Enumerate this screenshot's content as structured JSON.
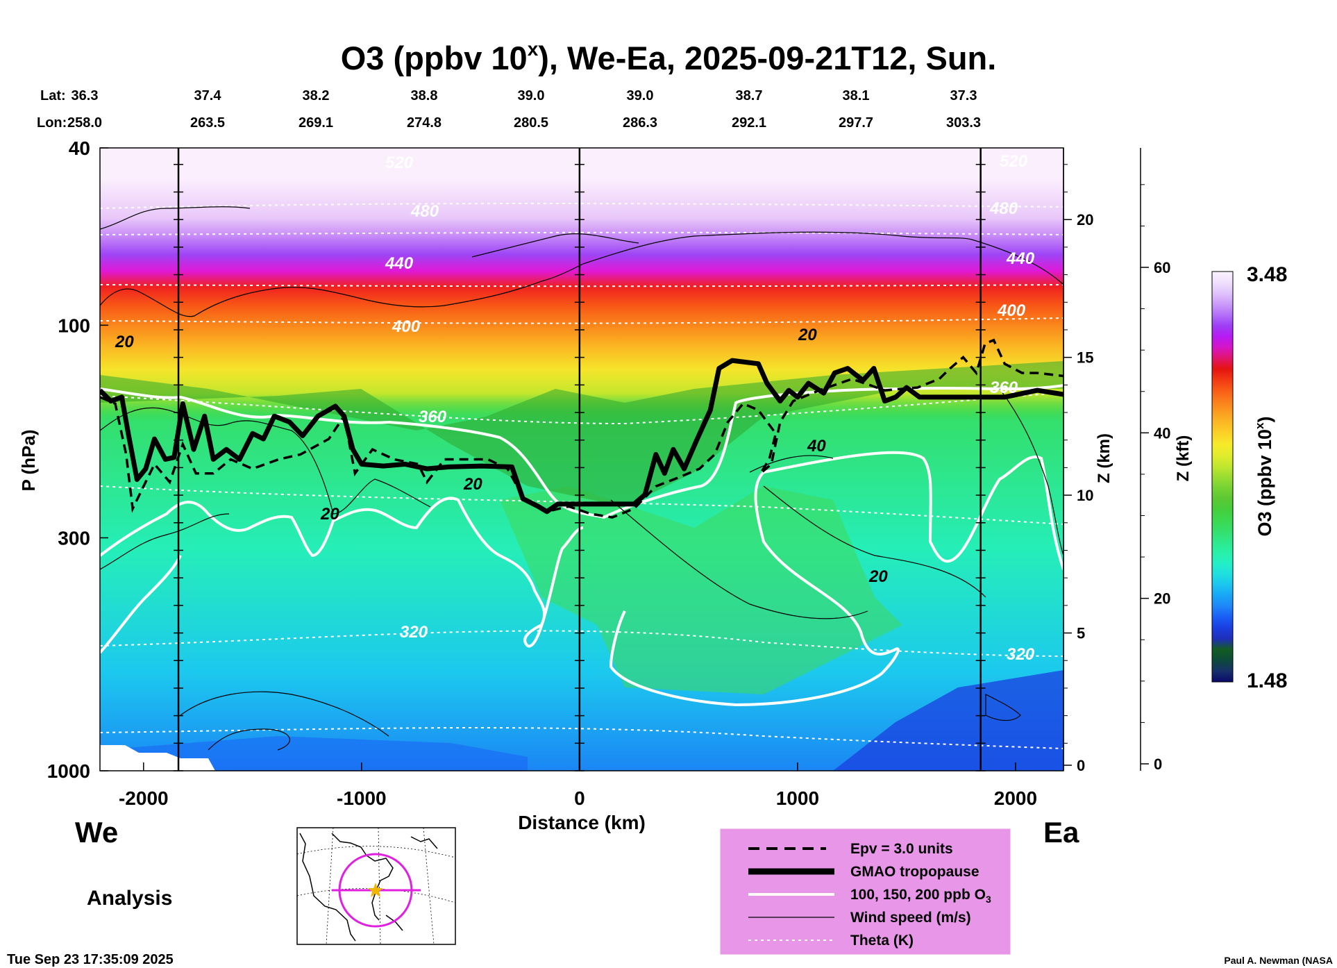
{
  "chart_data": {
    "type": "heatmap",
    "title_main": "O3 (ppbv 10",
    "title_sup": "x",
    "title_rest": "), We-Ea, 2025-09-21T12, Sun.",
    "lat_label": "Lat:",
    "lon_label": "Lon:",
    "lats": [
      "36.3",
      "37.4",
      "38.2",
      "38.8",
      "39.0",
      "39.0",
      "38.7",
      "38.1",
      "37.3"
    ],
    "lons": [
      "258.0",
      "263.5",
      "269.1",
      "274.8",
      "280.5",
      "286.3",
      "292.1",
      "297.7",
      "303.3"
    ],
    "xlabel": "Distance (km)",
    "xlim": [
      -2200,
      2220
    ],
    "xticks": [
      {
        "value": -2000,
        "label": "-2000"
      },
      {
        "value": -1000,
        "label": "-1000"
      },
      {
        "value": 0,
        "label": "0"
      },
      {
        "value": 1000,
        "label": "1000"
      },
      {
        "value": 2000,
        "label": "2000"
      }
    ],
    "ylabel": "P (hPa)",
    "ylim": [
      1000,
      40
    ],
    "yscale": "log",
    "yticks": [
      {
        "value": 40,
        "label": "40"
      },
      {
        "value": 100,
        "label": "100"
      },
      {
        "value": 300,
        "label": "300"
      },
      {
        "value": 1000,
        "label": "1000"
      }
    ],
    "z_km_label": "Z (km)",
    "z_km_ticks": [
      {
        "value": 0,
        "label": "0"
      },
      {
        "value": 5,
        "label": "5"
      },
      {
        "value": 10,
        "label": "10"
      },
      {
        "value": 15,
        "label": "15"
      },
      {
        "value": 20,
        "label": "20"
      }
    ],
    "z_kft_label": "Z (kft)",
    "z_kft_ticks": [
      {
        "value": 0,
        "label": "0"
      },
      {
        "value": 20,
        "label": "20"
      },
      {
        "value": 40,
        "label": "40"
      },
      {
        "value": 60,
        "label": "60"
      }
    ],
    "cross_lines_km": [
      -1840,
      0,
      1840
    ],
    "colorbar": {
      "label_main": "O3 (ppbv 10",
      "label_sup": "x",
      "label_rest": ")",
      "max_label": "3.48",
      "min_label": "1.48",
      "colors": [
        "#0a0a6b",
        "#17306a",
        "#0c4a3a",
        "#135d22",
        "#1f2fb7",
        "#1b3fe0",
        "#1a5ef5",
        "#1e86f8",
        "#17a6f5",
        "#1cc6ef",
        "#1ee0df",
        "#23efc6",
        "#28f0a7",
        "#2ee88a",
        "#35df6c",
        "#3bd84e",
        "#45ce3b",
        "#5cc833",
        "#77d333",
        "#9bdd31",
        "#c1e72e",
        "#e2ec2c",
        "#f7ea2a",
        "#fbd227",
        "#fbb823",
        "#fb9c1f",
        "#fa7e1b",
        "#f85c17",
        "#f23814",
        "#e41410",
        "#e0156e",
        "#d515c8",
        "#b61bf3",
        "#9d3ff5",
        "#b371f8",
        "#cc9cf9",
        "#e0c3fb",
        "#f1e0fd",
        "#faf3fe"
      ]
    },
    "o3_levels": {
      "stratosphere_layers_hPa": [
        [
          40,
          55,
          "#fbeefd"
        ],
        [
          55,
          60,
          "#e9c8f9"
        ],
        [
          60,
          66,
          "#c88cf8"
        ],
        [
          66,
          73,
          "#9d45f5"
        ],
        [
          73,
          78,
          "#df19d8"
        ],
        [
          78,
          86,
          "#ef2020"
        ],
        [
          86,
          94,
          "#f85516"
        ],
        [
          94,
          105,
          "#fa841b"
        ],
        [
          105,
          118,
          "#fbb623"
        ],
        [
          118,
          135,
          "#f5e52a"
        ],
        [
          135,
          150,
          "#c3e72d"
        ]
      ]
    },
    "tropopause_km_hPa": [
      [
        -2200,
        140
      ],
      [
        -2150,
        148
      ],
      [
        -2100,
        145
      ],
      [
        -2070,
        175
      ],
      [
        -2030,
        222
      ],
      [
        -1990,
        210
      ],
      [
        -1950,
        180
      ],
      [
        -1900,
        200
      ],
      [
        -1860,
        198
      ],
      [
        -1820,
        150
      ],
      [
        -1770,
        190
      ],
      [
        -1720,
        160
      ],
      [
        -1680,
        200
      ],
      [
        -1620,
        190
      ],
      [
        -1560,
        200
      ],
      [
        -1500,
        175
      ],
      [
        -1450,
        180
      ],
      [
        -1400,
        160
      ],
      [
        -1330,
        165
      ],
      [
        -1270,
        177
      ],
      [
        -1200,
        160
      ],
      [
        -1120,
        152
      ],
      [
        -1080,
        160
      ],
      [
        -1040,
        190
      ],
      [
        -1000,
        205
      ],
      [
        -900,
        207
      ],
      [
        -800,
        205
      ],
      [
        -700,
        210
      ],
      [
        -600,
        208
      ],
      [
        -450,
        207
      ],
      [
        -310,
        208
      ],
      [
        -260,
        245
      ],
      [
        -190,
        255
      ],
      [
        -150,
        262
      ],
      [
        -100,
        252
      ],
      [
        0,
        252
      ],
      [
        100,
        252
      ],
      [
        250,
        252
      ],
      [
        300,
        240
      ],
      [
        350,
        195
      ],
      [
        390,
        215
      ],
      [
        430,
        190
      ],
      [
        480,
        210
      ],
      [
        540,
        180
      ],
      [
        600,
        155
      ],
      [
        640,
        125
      ],
      [
        700,
        120
      ],
      [
        820,
        122
      ],
      [
        860,
        135
      ],
      [
        920,
        148
      ],
      [
        960,
        140
      ],
      [
        1000,
        145
      ],
      [
        1050,
        135
      ],
      [
        1120,
        142
      ],
      [
        1170,
        128
      ],
      [
        1230,
        125
      ],
      [
        1300,
        133
      ],
      [
        1350,
        125
      ],
      [
        1400,
        148
      ],
      [
        1450,
        145
      ],
      [
        1500,
        138
      ],
      [
        1560,
        145
      ],
      [
        1700,
        145
      ],
      [
        1850,
        145
      ],
      [
        1950,
        145
      ],
      [
        2100,
        140
      ],
      [
        2220,
        143
      ]
    ],
    "epv_km_hPa": [
      [
        -2200,
        145
      ],
      [
        -2130,
        150
      ],
      [
        -2080,
        195
      ],
      [
        -2050,
        258
      ],
      [
        -2000,
        230
      ],
      [
        -1950,
        205
      ],
      [
        -1880,
        225
      ],
      [
        -1820,
        185
      ],
      [
        -1760,
        215
      ],
      [
        -1680,
        215
      ],
      [
        -1600,
        200
      ],
      [
        -1500,
        210
      ],
      [
        -1380,
        200
      ],
      [
        -1280,
        195
      ],
      [
        -1150,
        180
      ],
      [
        -1080,
        160
      ],
      [
        -1030,
        215
      ],
      [
        -950,
        190
      ],
      [
        -850,
        200
      ],
      [
        -740,
        205
      ],
      [
        -700,
        225
      ],
      [
        -620,
        200
      ],
      [
        -520,
        200
      ],
      [
        -420,
        200
      ],
      [
        -330,
        210
      ],
      [
        -250,
        248
      ],
      [
        -150,
        262
      ],
      [
        -50,
        255
      ],
      [
        50,
        265
      ],
      [
        150,
        270
      ],
      [
        250,
        258
      ],
      [
        350,
        230
      ],
      [
        450,
        220
      ],
      [
        550,
        210
      ],
      [
        620,
        195
      ],
      [
        680,
        165
      ],
      [
        750,
        150
      ],
      [
        820,
        155
      ],
      [
        900,
        175
      ],
      [
        870,
        200
      ],
      [
        830,
        215
      ],
      [
        880,
        205
      ],
      [
        920,
        165
      ],
      [
        980,
        148
      ],
      [
        1100,
        140
      ],
      [
        1250,
        132
      ],
      [
        1400,
        140
      ],
      [
        1550,
        138
      ],
      [
        1650,
        132
      ],
      [
        1700,
        125
      ],
      [
        1760,
        118
      ],
      [
        1820,
        128
      ],
      [
        1860,
        110
      ],
      [
        1900,
        108
      ],
      [
        1950,
        122
      ],
      [
        2030,
        128
      ],
      [
        2100,
        128
      ],
      [
        2220,
        130
      ]
    ],
    "isentrope_labels": [
      "520",
      "480",
      "440",
      "400",
      "360",
      "320"
    ],
    "wind_labels": [
      "20",
      "20",
      "20",
      "20",
      "40",
      "20"
    ],
    "legend": [
      {
        "label": "Epv = 3.0 units",
        "style": "dashed"
      },
      {
        "label": "GMAO tropopause",
        "style": "thick"
      },
      {
        "label": "100, 150, 200 ppb O",
        "sub": "3",
        "style": "white"
      },
      {
        "label": "Wind speed (m/s)",
        "style": "thin"
      },
      {
        "label": "Theta (K)",
        "style": "dotted"
      }
    ]
  },
  "west_label": "We",
  "east_label": "Ea",
  "analysis_label": "Analysis",
  "timestamp": "Tue Sep 23 17:35:09 2025",
  "credit": "Paul A. Newman (NASA",
  "colors": {
    "legend_bg": "#e897e8",
    "map_circle": "#e01fe0",
    "map_star": "#f2b600",
    "white_contour": "#ffffff"
  }
}
